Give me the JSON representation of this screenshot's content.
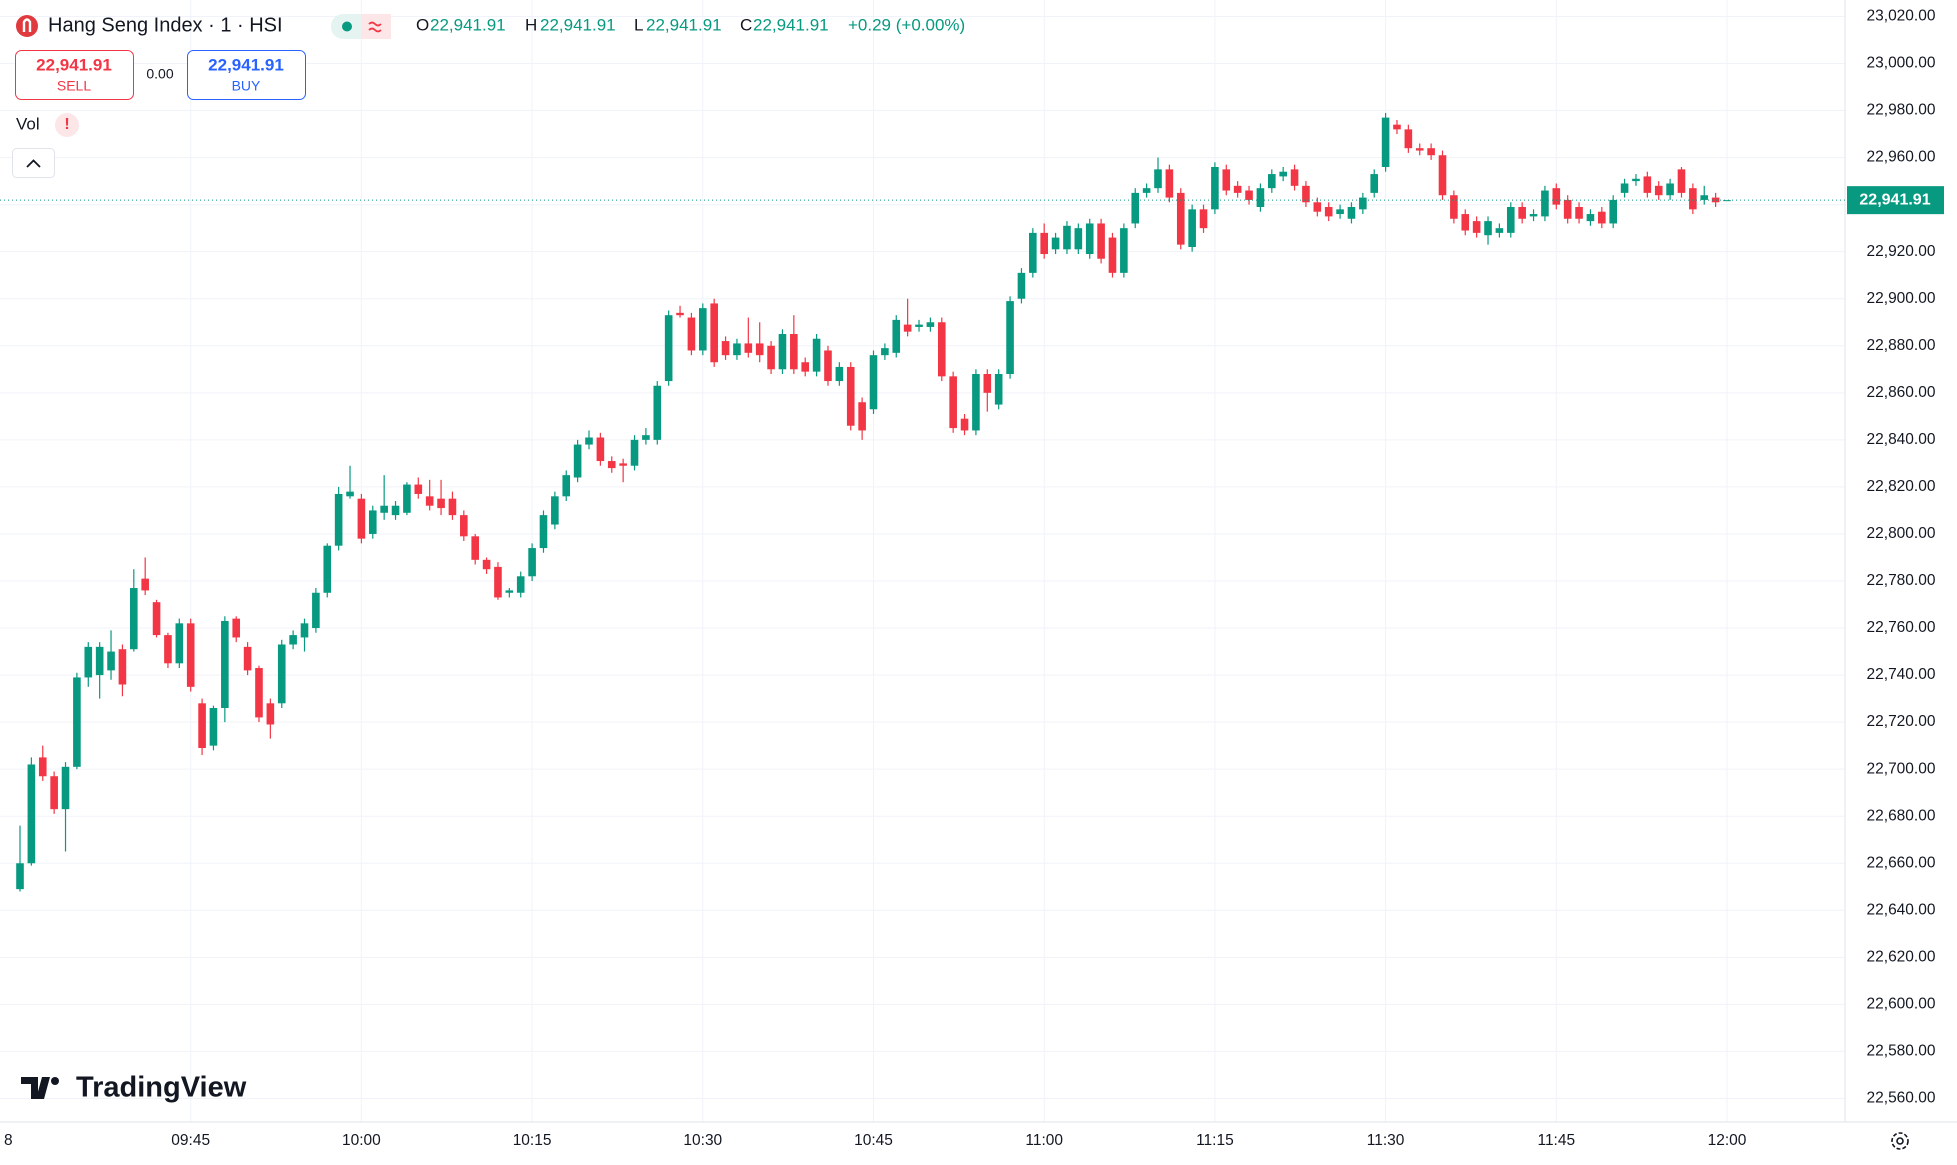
{
  "header": {
    "title": "Hang Seng Index · 1 · HSI",
    "ohlc": [
      {
        "label": "O",
        "value": "22,941.91"
      },
      {
        "label": "H",
        "value": "22,941.91"
      },
      {
        "label": "L",
        "value": "22,941.91"
      },
      {
        "label": "C",
        "value": "22,941.91"
      }
    ],
    "change": "+0.29 (+0.00%)",
    "sell": {
      "price": "22,941.91",
      "label": "SELL"
    },
    "spread": "0.00",
    "buy": {
      "price": "22,941.91",
      "label": "BUY"
    },
    "volume_label": "Vol",
    "volume_alert": "!",
    "brand": "TradingView"
  },
  "chart_data": {
    "type": "candlestick",
    "up_color": "#089981",
    "down_color": "#f23645",
    "grid": true,
    "x": [
      "09:30",
      "09:31",
      "09:32",
      "09:33",
      "09:34",
      "09:35",
      "09:36",
      "09:37",
      "09:38",
      "09:39",
      "09:40",
      "09:41",
      "09:42",
      "09:43",
      "09:44",
      "09:45",
      "09:46",
      "09:47",
      "09:48",
      "09:49",
      "09:50",
      "09:51",
      "09:52",
      "09:53",
      "09:54",
      "09:55",
      "09:56",
      "09:57",
      "09:58",
      "09:59",
      "10:00",
      "10:01",
      "10:02",
      "10:03",
      "10:04",
      "10:05",
      "10:06",
      "10:07",
      "10:08",
      "10:09",
      "10:10",
      "10:11",
      "10:12",
      "10:13",
      "10:14",
      "10:15",
      "10:16",
      "10:17",
      "10:18",
      "10:19",
      "10:20",
      "10:21",
      "10:22",
      "10:23",
      "10:24",
      "10:25",
      "10:26",
      "10:27",
      "10:28",
      "10:29",
      "10:30",
      "10:31",
      "10:32",
      "10:33",
      "10:34",
      "10:35",
      "10:36",
      "10:37",
      "10:38",
      "10:39",
      "10:40",
      "10:41",
      "10:42",
      "10:43",
      "10:44",
      "10:45",
      "10:46",
      "10:47",
      "10:48",
      "10:49",
      "10:50",
      "10:51",
      "10:52",
      "10:53",
      "10:54",
      "10:55",
      "10:56",
      "10:57",
      "10:58",
      "10:59",
      "11:00",
      "11:01",
      "11:02",
      "11:03",
      "11:04",
      "11:05",
      "11:06",
      "11:07",
      "11:08",
      "11:09",
      "11:10",
      "11:11",
      "11:12",
      "11:13",
      "11:14",
      "11:15",
      "11:16",
      "11:17",
      "11:18",
      "11:19",
      "11:20",
      "11:21",
      "11:22",
      "11:23",
      "11:24",
      "11:25",
      "11:26",
      "11:27",
      "11:28",
      "11:29",
      "11:30",
      "11:31",
      "11:32",
      "11:33",
      "11:34",
      "11:35",
      "11:36",
      "11:37",
      "11:38",
      "11:39",
      "11:40",
      "11:41",
      "11:42",
      "11:43",
      "11:44",
      "11:45",
      "11:46",
      "11:47",
      "11:48",
      "11:49",
      "11:50",
      "11:51",
      "11:52",
      "11:53",
      "11:54",
      "11:55",
      "11:56",
      "11:57",
      "11:58",
      "11:59",
      "12:00"
    ],
    "open": [
      22649,
      22660,
      22705,
      22697,
      22683,
      22701,
      22739,
      22740,
      22742,
      22751,
      22751,
      22781,
      22771,
      22757,
      22745,
      22762,
      22728,
      22710,
      22726,
      22764,
      22752,
      22743,
      22728,
      22728,
      22753,
      22756,
      22760,
      22775,
      22795,
      22816,
      22815,
      22800,
      22809,
      22808,
      22809,
      22821,
      22816,
      22815,
      22815,
      22808,
      22799,
      22789,
      22786,
      22775,
      22775,
      22782,
      22794,
      22804,
      22816,
      22824,
      22838,
      22841,
      22831,
      22830,
      22829,
      22840,
      22840,
      22865,
      22894,
      22892,
      22878,
      22898,
      22882,
      22876,
      22881,
      22881,
      22880,
      22870,
      22885,
      22873,
      22869,
      22878,
      22865,
      22871,
      22856,
      22853,
      22876,
      22877,
      22889,
      22888,
      22888,
      22890,
      22867,
      22849,
      22844,
      22868,
      22855,
      22868,
      22900,
      22911,
      22928,
      22921,
      22921,
      22921,
      22919,
      22932,
      22926,
      22911,
      22932,
      22945,
      22947,
      22955,
      22945,
      22922,
      22938,
      22938,
      22955,
      22948,
      22946,
      22939,
      22947,
      22952,
      22955,
      22948,
      22941,
      22939,
      22936,
      22934,
      22938,
      22945,
      22956,
      22974,
      22972,
      22964,
      22964,
      22961,
      22944,
      22936,
      22933,
      22927,
      22928,
      22928,
      22939,
      22935,
      22935,
      22947,
      22942,
      22939,
      22933,
      22937,
      22932,
      22945,
      22950,
      22952,
      22948,
      22944,
      22955,
      22947,
      22942,
      22943,
      22941.91
    ],
    "high": [
      22676,
      22705,
      22710,
      22699,
      22703,
      22741,
      22754,
      22754,
      22759,
      22753,
      22785,
      22790,
      22772,
      22758,
      22764,
      22764,
      22730,
      22727,
      22765,
      22765,
      22754,
      22744,
      22730,
      22755,
      22759,
      22764,
      22777,
      22796,
      22820,
      22829,
      22817,
      22812,
      22825,
      22814,
      22822,
      22824,
      22823,
      22823,
      22818,
      22810,
      22800,
      22790,
      22788,
      22777,
      22784,
      22796,
      22810,
      22818,
      22827,
      22840,
      22844,
      22843,
      22833,
      22832,
      22842,
      22845,
      22865,
      22895,
      22897,
      22894,
      22898,
      22900,
      22884,
      22883,
      22892,
      22890,
      22882,
      22887,
      22893,
      22875,
      22885,
      22880,
      22873,
      22873,
      22858,
      22878,
      22881,
      22893,
      22900,
      22891,
      22892,
      22892,
      22869,
      22851,
      22870,
      22870,
      22870,
      22901,
      22913,
      22930,
      22932,
      22928,
      22933,
      22932,
      22934,
      22934,
      22928,
      22932,
      22947,
      22949,
      22960,
      22957,
      22947,
      22940,
      22940,
      22958,
      22957,
      22950,
      22948,
      22949,
      22955,
      22956,
      22957,
      22950,
      22943,
      22941,
      22940,
      22941,
      22945,
      22955,
      22979,
      22976,
      22974,
      22966,
      22966,
      22963,
      22946,
      22938,
      22935,
      22935,
      22932,
      22941,
      22941,
      22938,
      22948,
      22949,
      22944,
      22941,
      22938,
      22939,
      22944,
      22951,
      22953,
      22954,
      22950,
      22951,
      22956,
      22949,
      22948,
      22945,
      22941.91
    ],
    "low": [
      22648,
      22659,
      22695,
      22681,
      22665,
      22700,
      22735,
      22730,
      22738,
      22731,
      22750,
      22774,
      22756,
      22743,
      22743,
      22733,
      22706,
      22708,
      22720,
      22754,
      22740,
      22720,
      22713,
      22726,
      22751,
      22750,
      22758,
      22773,
      22793,
      22815,
      22796,
      22798,
      22806,
      22806,
      22808,
      22815,
      22810,
      22808,
      22806,
      22797,
      22787,
      22783,
      22772,
      22773,
      22773,
      22780,
      22792,
      22802,
      22814,
      22822,
      22836,
      22829,
      22826,
      22822,
      22827,
      22838,
      22838,
      22863,
      22892,
      22876,
      22876,
      22871,
      22874,
      22874,
      22875,
      22873,
      22868,
      22868,
      22868,
      22867,
      22867,
      22863,
      22863,
      22844,
      22840,
      22851,
      22874,
      22875,
      22884,
      22886,
      22886,
      22865,
      22843,
      22842,
      22842,
      22852,
      22853,
      22866,
      22898,
      22909,
      22917,
      22919,
      22919,
      22919,
      22917,
      22915,
      22909,
      22909,
      22930,
      22943,
      22945,
      22941,
      22921,
      22920,
      22928,
      22936,
      22944,
      22943,
      22940,
      22937,
      22945,
      22950,
      22946,
      22939,
      22935,
      22933,
      22934,
      22932,
      22936,
      22943,
      22954,
      22970,
      22962,
      22961,
      22959,
      22942,
      22932,
      22927,
      22926,
      22923,
      22926,
      22926,
      22932,
      22933,
      22933,
      22938,
      22932,
      22932,
      22931,
      22930,
      22930,
      22943,
      22948,
      22943,
      22942,
      22942,
      22943,
      22936,
      22940,
      22939,
      22941.91
    ],
    "close": [
      22660,
      22702,
      22697,
      22683,
      22701,
      22739,
      22752,
      22752,
      22750,
      22736,
      22777,
      22776,
      22757,
      22745,
      22762,
      22735,
      22709,
      22726,
      22763,
      22756,
      22742,
      22722,
      22719,
      22753,
      22757,
      22762,
      22775,
      22795,
      22817,
      22818,
      22798,
      22810,
      22812,
      22812,
      22821,
      22817,
      22812,
      22811,
      22808,
      22799,
      22789,
      22785,
      22773,
      22776,
      22782,
      22794,
      22808,
      22816,
      22825,
      22838,
      22841,
      22831,
      22828,
      22829,
      22840,
      22842,
      22863,
      22893,
      22893,
      22878,
      22896,
      22873,
      22876,
      22881,
      22877,
      22876,
      22870,
      22885,
      22870,
      22869,
      22883,
      22865,
      22871,
      22846,
      22844,
      22876,
      22879,
      22891,
      22886,
      22889,
      22890,
      22867,
      22845,
      22844,
      22868,
      22860,
      22868,
      22899,
      22911,
      22928,
      22919,
      22926,
      22931,
      22930,
      22932,
      22917,
      22911,
      22930,
      22945,
      22947,
      22955,
      22943,
      22923,
      22938,
      22930,
      22956,
      22946,
      22945,
      22942,
      22947,
      22953,
      22954,
      22948,
      22941,
      22937,
      22935,
      22938,
      22939,
      22943,
      22953,
      22977,
      22972,
      22964,
      22963,
      22961,
      22944,
      22934,
      22929,
      22928,
      22933,
      22930,
      22939,
      22934,
      22936,
      22946,
      22940,
      22934,
      22934,
      22936,
      22932,
      22942,
      22949,
      22951,
      22945,
      22944,
      22949,
      22945,
      22938,
      22944,
      22941,
      22941.91
    ],
    "ylim": [
      22550,
      23027
    ],
    "yticks": [
      {
        "value": 22560,
        "label": "22,560.00"
      },
      {
        "value": 22580,
        "label": "22,580.00"
      },
      {
        "value": 22600,
        "label": "22,600.00"
      },
      {
        "value": 22620,
        "label": "22,620.00"
      },
      {
        "value": 22640,
        "label": "22,640.00"
      },
      {
        "value": 22660,
        "label": "22,660.00"
      },
      {
        "value": 22680,
        "label": "22,680.00"
      },
      {
        "value": 22700,
        "label": "22,700.00"
      },
      {
        "value": 22720,
        "label": "22,720.00"
      },
      {
        "value": 22740,
        "label": "22,740.00"
      },
      {
        "value": 22760,
        "label": "22,760.00"
      },
      {
        "value": 22780,
        "label": "22,780.00"
      },
      {
        "value": 22800,
        "label": "22,800.00"
      },
      {
        "value": 22820,
        "label": "22,820.00"
      },
      {
        "value": 22840,
        "label": "22,840.00"
      },
      {
        "value": 22860,
        "label": "22,860.00"
      },
      {
        "value": 22880,
        "label": "22,880.00"
      },
      {
        "value": 22900,
        "label": "22,900.00"
      },
      {
        "value": 22920,
        "label": "22,920.00"
      },
      {
        "value": 22940,
        "label": "22,940.00"
      },
      {
        "value": 22960,
        "label": "22,960.00"
      },
      {
        "value": 22980,
        "label": "22,980.00"
      },
      {
        "value": 23000,
        "label": "23,000.00"
      },
      {
        "value": 23020,
        "label": "23,020.00"
      }
    ],
    "xticks": [
      "09:45",
      "10:00",
      "10:15",
      "10:30",
      "10:45",
      "11:00",
      "11:15",
      "11:30",
      "11:45",
      "12:00"
    ],
    "date_label": "8",
    "last_price": 22941.91,
    "last_price_label": "22,941.91"
  }
}
